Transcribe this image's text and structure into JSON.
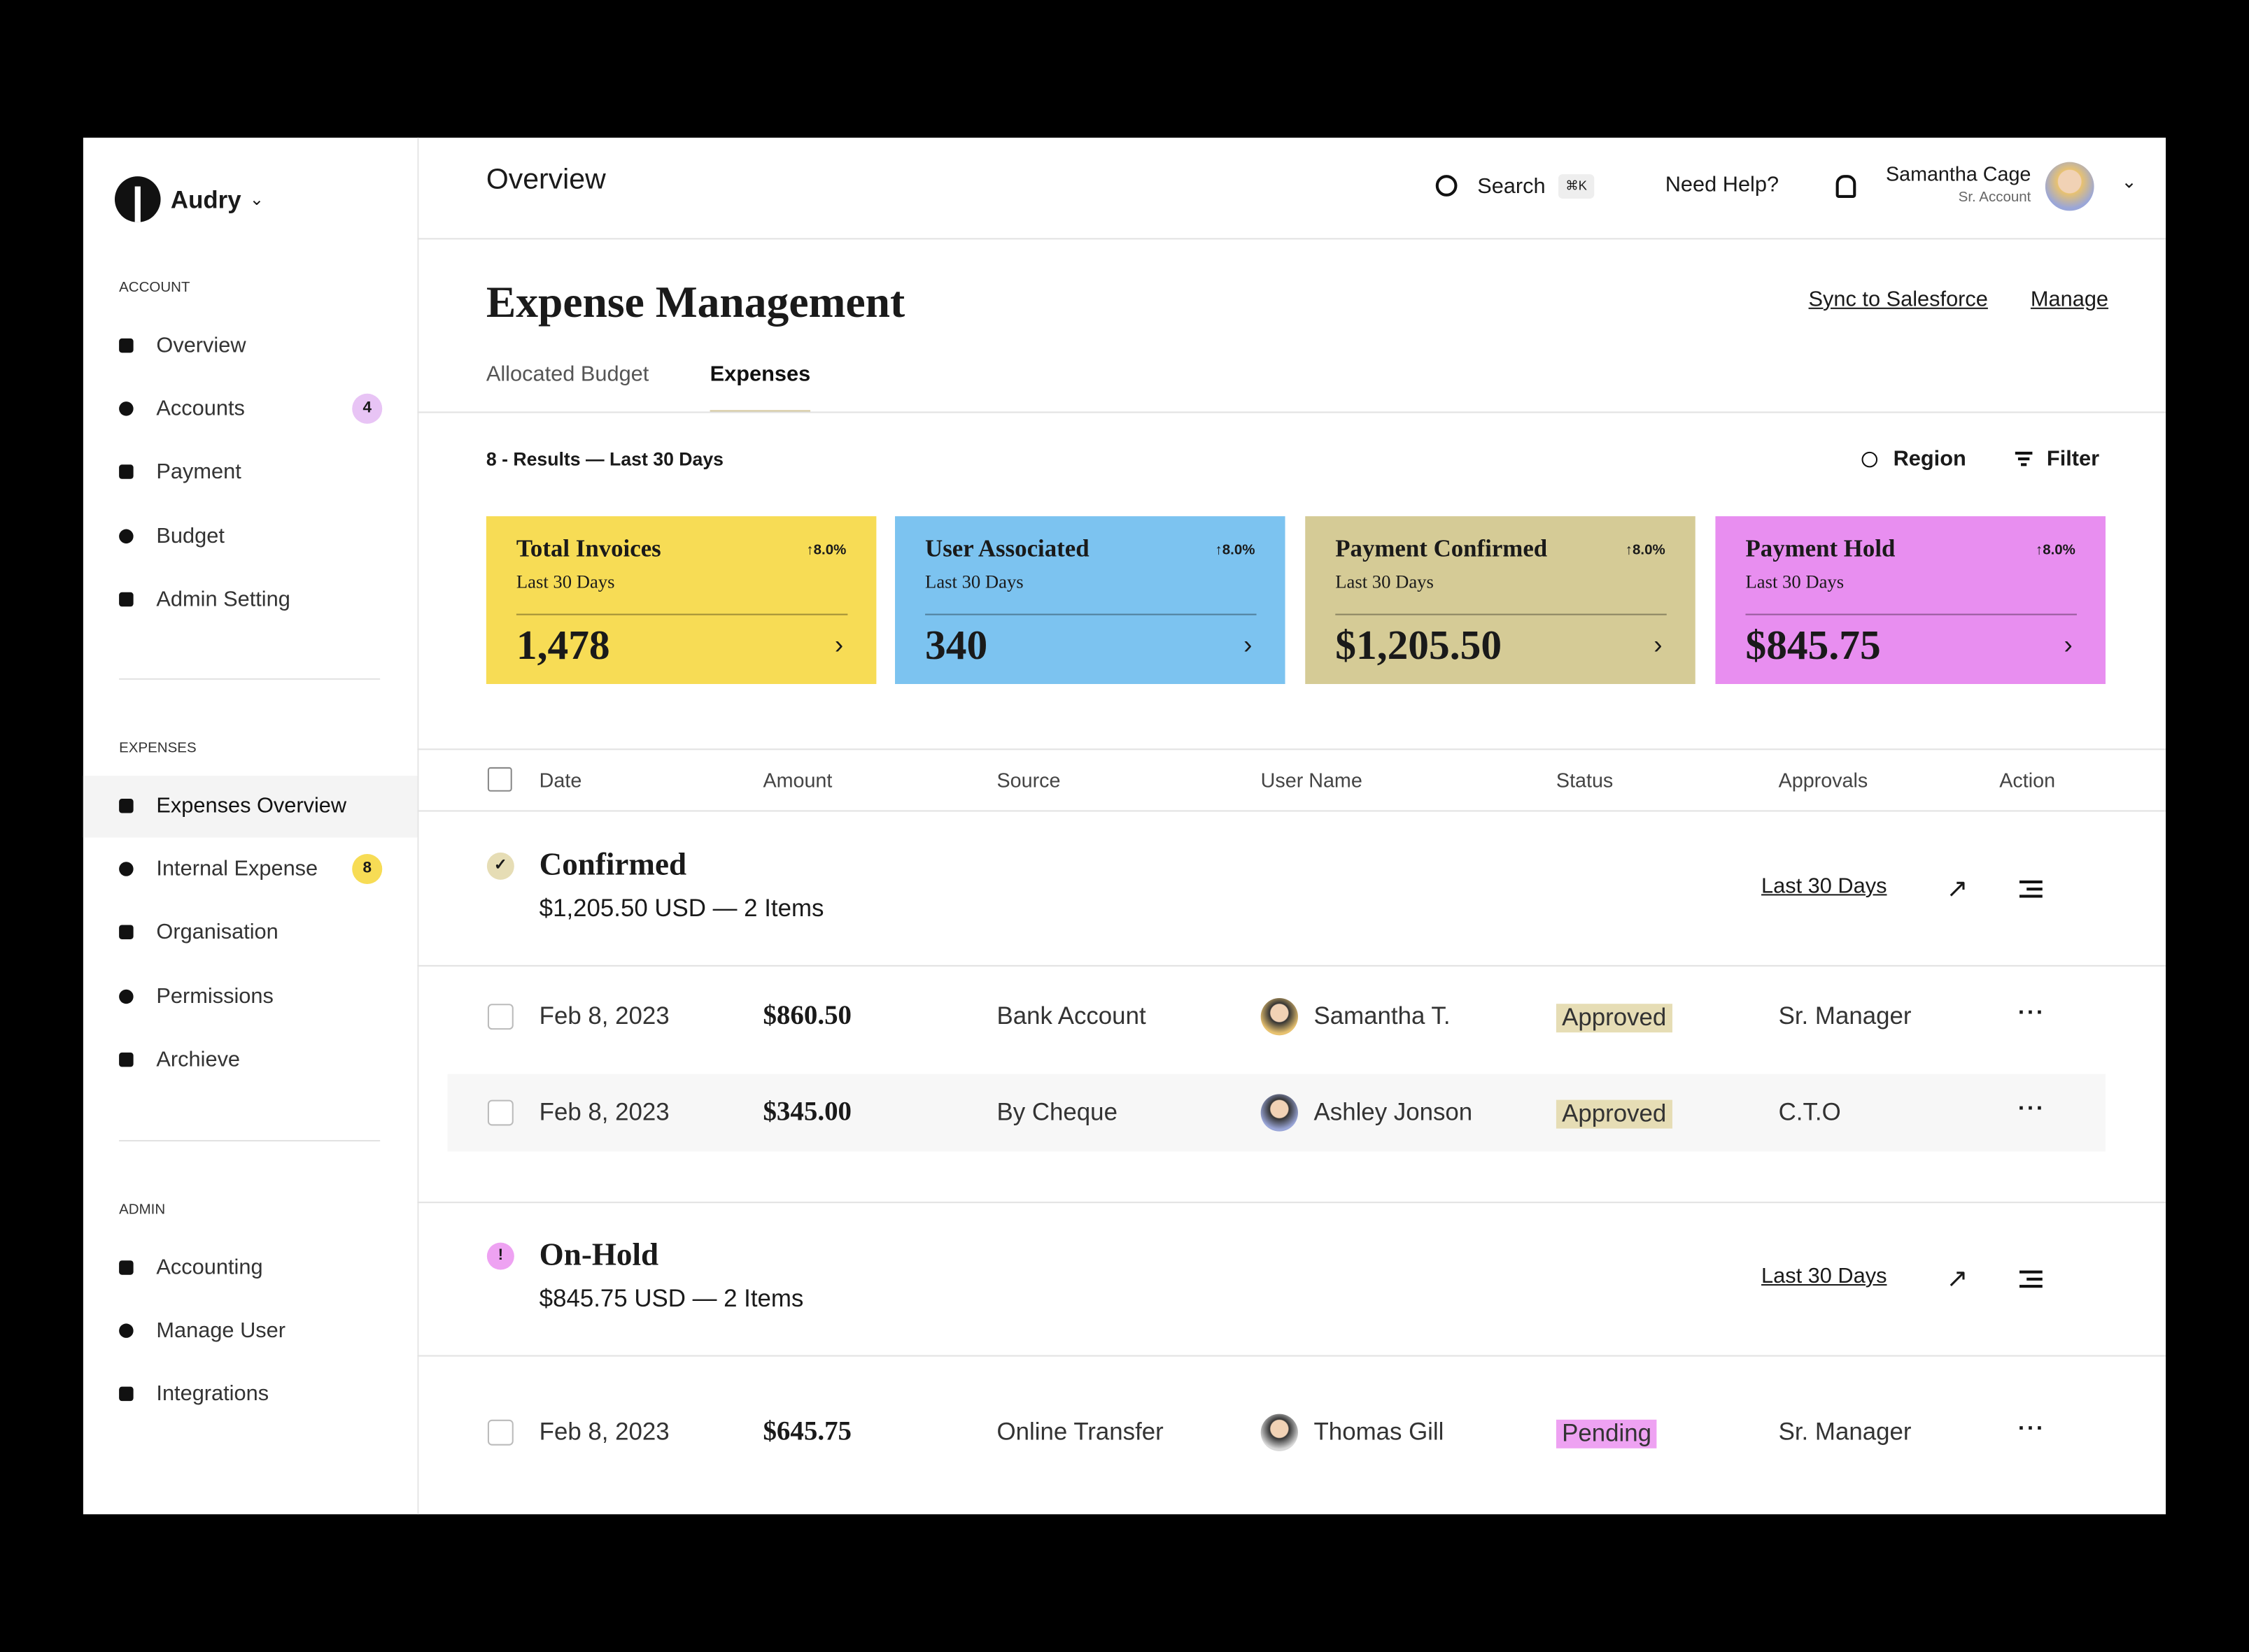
{
  "brand": "Audry",
  "sidebar": {
    "sections": [
      {
        "label": "ACCOUNT",
        "items": [
          {
            "label": "Overview"
          },
          {
            "label": "Accounts",
            "badge": "4",
            "badge_color": "#e8c4f5"
          },
          {
            "label": "Payment"
          },
          {
            "label": "Budget"
          },
          {
            "label": "Admin Setting"
          }
        ]
      },
      {
        "label": "EXPENSES",
        "items": [
          {
            "label": "Expenses Overview",
            "active": true
          },
          {
            "label": "Internal Expense",
            "badge": "8",
            "badge_color": "#f7dc55"
          },
          {
            "label": "Organisation"
          },
          {
            "label": "Permissions"
          },
          {
            "label": "Archieve"
          }
        ]
      },
      {
        "label": "ADMIN",
        "items": [
          {
            "label": "Accounting"
          },
          {
            "label": "Manage User"
          },
          {
            "label": "Integrations"
          }
        ]
      }
    ]
  },
  "header": {
    "title": "Overview",
    "search": "Search",
    "shortcut": "⌘K",
    "help": "Need Help?",
    "user": {
      "name": "Samantha Cage",
      "role": "Sr. Account"
    }
  },
  "page": {
    "title": "Expense Management",
    "links": [
      "Sync to Salesforce",
      "Manage"
    ],
    "tabs": [
      {
        "label": "Allocated Budget"
      },
      {
        "label": "Expenses",
        "active": true
      }
    ],
    "results": "8 - Results — Last 30 Days",
    "controls": [
      "Region",
      "Filter"
    ]
  },
  "cards": [
    {
      "title": "Total Invoices",
      "change": "↑8.0%",
      "period": "Last 30 Days",
      "value": "1,478",
      "color": "#f7dc55"
    },
    {
      "title": "User Associated",
      "change": "↑8.0%",
      "period": "Last 30 Days",
      "value": "340",
      "color": "#7cc3f0"
    },
    {
      "title": "Payment Confirmed",
      "change": "↑8.0%",
      "period": "Last 30 Days",
      "value": "$1,205.50",
      "color": "#d5cb96"
    },
    {
      "title": "Payment Hold",
      "change": "↑8.0%",
      "period": "Last 30 Days",
      "value": "$845.75",
      "color": "#e88ef0"
    }
  ],
  "table": {
    "columns": [
      "Date",
      "Amount",
      "Source",
      "User Name",
      "Status",
      "Approvals",
      "Action"
    ],
    "groups": [
      {
        "title": "Confirmed",
        "summary": "$1,205.50 USD — 2 Items",
        "period": "Last 30 Days",
        "icon": "✓",
        "color": "#e6ddb5",
        "rows": [
          {
            "date": "Feb 8, 2023",
            "amount": "$860.50",
            "source": "Bank Account",
            "user": "Samantha T.",
            "status": "Approved",
            "approval": "Sr. Manager"
          },
          {
            "date": "Feb 8, 2023",
            "amount": "$345.00",
            "source": "By Cheque",
            "user": "Ashley Jonson",
            "status": "Approved",
            "approval": "C.T.O"
          }
        ]
      },
      {
        "title": "On-Hold",
        "summary": "$845.75 USD — 2 Items",
        "period": "Last 30 Days",
        "icon": "!",
        "color": "#eea2f2",
        "rows": [
          {
            "date": "Feb 8, 2023",
            "amount": "$645.75",
            "source": "Online Transfer",
            "user": "Thomas Gill",
            "status": "Pending",
            "approval": "Sr. Manager"
          }
        ]
      }
    ]
  }
}
